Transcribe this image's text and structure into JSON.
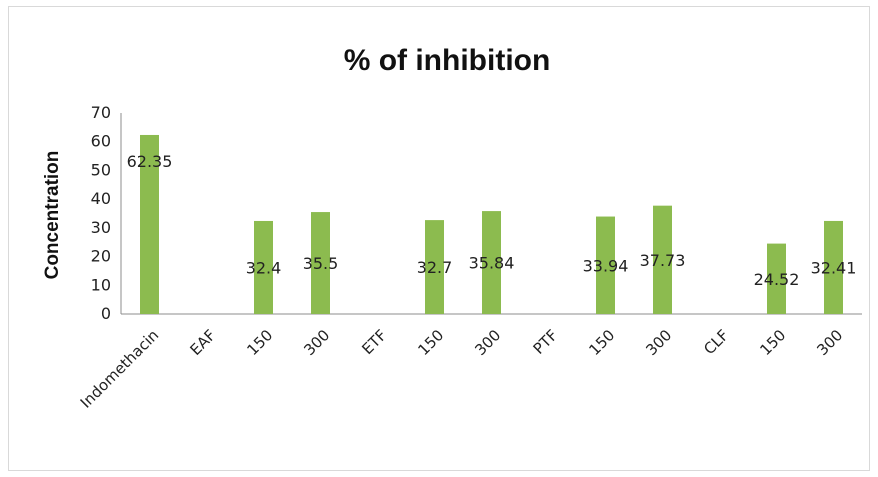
{
  "chart_data": {
    "type": "bar",
    "title": "% of inhibition",
    "xlabel": "",
    "ylabel": "Concentration",
    "ylim": [
      0,
      70
    ],
    "yticks": [
      0,
      10,
      20,
      30,
      40,
      50,
      60,
      70
    ],
    "grid": false,
    "legend": "none",
    "bar_color": "#8cbb4f",
    "categories": [
      "Indomethacin",
      "EAF",
      "150",
      "300",
      "ETF",
      "150",
      "300",
      "PTF",
      "150",
      "300",
      "CLF",
      "150",
      "300"
    ],
    "values": [
      62.35,
      null,
      32.4,
      35.5,
      null,
      32.7,
      35.84,
      null,
      33.94,
      37.73,
      null,
      24.52,
      32.41
    ],
    "data_labels": [
      "62.35",
      "",
      "32.4",
      "35.5",
      "",
      "32.7",
      "35.84",
      "",
      "33.94",
      "37.73",
      "",
      "24.52",
      "32.41"
    ]
  }
}
